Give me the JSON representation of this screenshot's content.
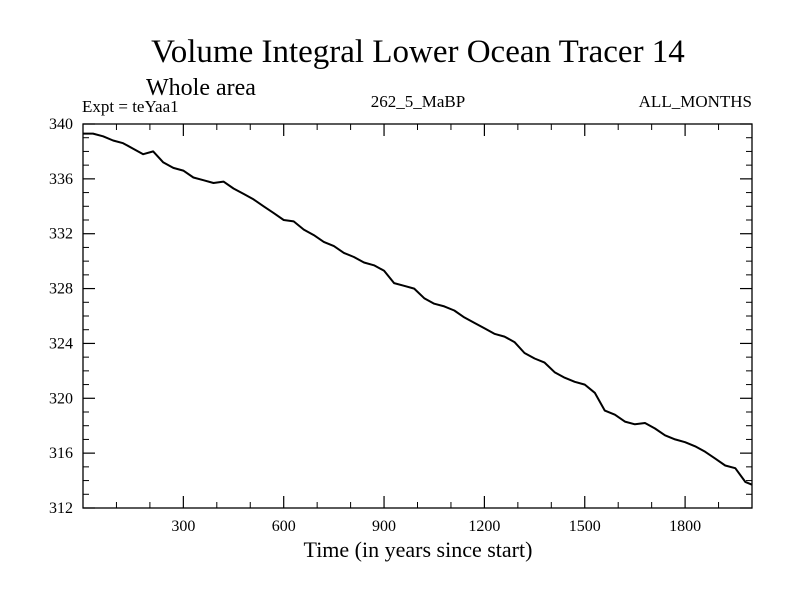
{
  "chart_data": {
    "type": "line",
    "title": "Volume Integral Lower Ocean Tracer 14",
    "subtitle": "Whole area",
    "left_label": "Expt = teYaa1",
    "center_label": "262_5_MaBP",
    "right_label": "ALL_MONTHS",
    "xlabel": "Time (in years since start)",
    "ylabel": "",
    "xlim": [
      0,
      2000
    ],
    "ylim": [
      312,
      340
    ],
    "x_ticks": [
      300,
      600,
      900,
      1200,
      1500,
      1800
    ],
    "y_ticks": [
      312,
      316,
      320,
      324,
      328,
      332,
      336,
      340
    ],
    "grid": false,
    "series": [
      {
        "name": "Volume Integral Lower Ocean Tracer 14",
        "color": "#000000",
        "x": [
          0,
          30,
          60,
          90,
          120,
          150,
          180,
          210,
          240,
          270,
          300,
          330,
          360,
          390,
          420,
          450,
          480,
          510,
          540,
          570,
          600,
          630,
          660,
          690,
          720,
          750,
          780,
          810,
          840,
          870,
          900,
          930,
          960,
          990,
          1020,
          1050,
          1080,
          1110,
          1140,
          1170,
          1200,
          1230,
          1260,
          1290,
          1320,
          1350,
          1380,
          1410,
          1440,
          1470,
          1500,
          1530,
          1560,
          1590,
          1620,
          1650,
          1680,
          1710,
          1740,
          1770,
          1800,
          1830,
          1860,
          1890,
          1920,
          1950,
          1980,
          2000
        ],
        "y": [
          339.3,
          339.3,
          339.1,
          338.8,
          338.6,
          338.2,
          337.8,
          338.0,
          337.2,
          336.8,
          336.6,
          336.1,
          335.9,
          335.7,
          335.8,
          335.3,
          334.9,
          334.5,
          334.0,
          333.5,
          333.0,
          332.9,
          332.3,
          331.9,
          331.4,
          331.1,
          330.6,
          330.3,
          329.9,
          329.7,
          329.3,
          328.4,
          328.2,
          328.0,
          327.3,
          326.9,
          326.7,
          326.4,
          325.9,
          325.5,
          325.1,
          324.7,
          324.5,
          324.1,
          323.3,
          322.9,
          322.6,
          321.9,
          321.5,
          321.2,
          321.0,
          320.4,
          319.1,
          318.8,
          318.3,
          318.1,
          318.2,
          317.8,
          317.3,
          317.0,
          316.8,
          316.5,
          316.1,
          315.6,
          315.1,
          314.9,
          313.9,
          313.7
        ]
      }
    ]
  }
}
